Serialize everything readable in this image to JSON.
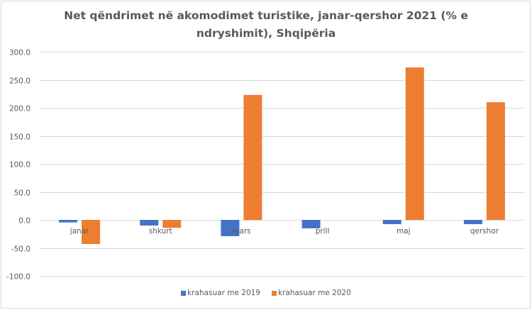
{
  "chart_data": {
    "type": "bar",
    "title": "Net qëndrimet në akomodimet turistike, janar-qershor 2021 (% e ndryshimit), Shqipëria",
    "title_lines": [
      "Net qëndrimet në akomodimet turistike, janar-qershor 2021 (% e",
      "ndryshimit), Shqipëria"
    ],
    "categories": [
      "janar",
      "shkurt",
      "mars",
      "prill",
      "maj",
      "qershor"
    ],
    "series": [
      {
        "name": "krahasuar me 2019",
        "color": "#4472c4",
        "values": [
          -4.5,
          -10,
          -29,
          -15,
          -7.5,
          -7.5
        ]
      },
      {
        "name": "krahasuar me 2020",
        "color": "#ed7d31",
        "values": [
          -43,
          -14,
          223,
          null,
          272,
          210
        ]
      }
    ],
    "xlabel": "",
    "ylabel": "",
    "ylim": [
      -100,
      300
    ],
    "yticks": [
      300,
      250,
      200,
      150,
      100,
      50,
      0,
      -50,
      -100
    ],
    "ytick_labels": [
      "300.0",
      "250.0",
      "200.0",
      "150.0",
      "100.0",
      "50.0",
      "0.0",
      "-50.0",
      "-100.0"
    ],
    "grid": true,
    "legend_position": "bottom"
  }
}
